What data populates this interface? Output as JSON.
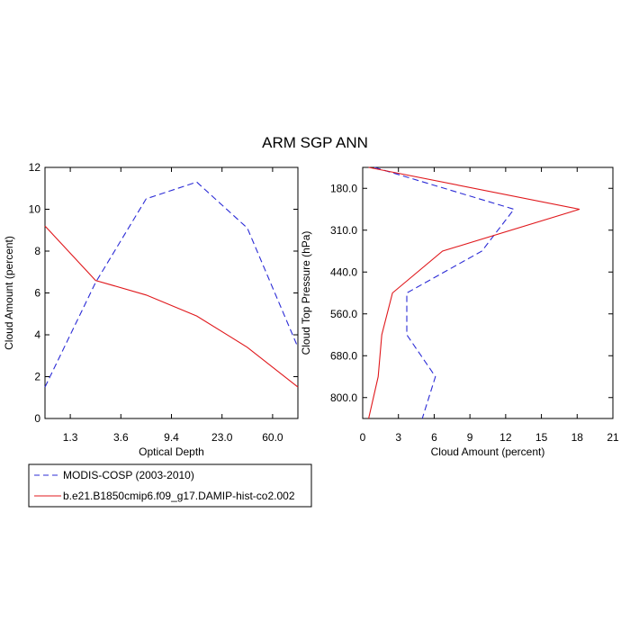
{
  "title": "ARM SGP ANN",
  "legend": {
    "placement": "bottom-left",
    "entries": [
      {
        "label": "MODIS-COSP (2003-2010)",
        "color": "#2b2bd6",
        "dashed": true
      },
      {
        "label": "b.e21.B1850cmip6.f09_g17.DAMIP-hist-co2.002",
        "color": "#e0181c",
        "dashed": false
      }
    ]
  },
  "chart_data": [
    {
      "type": "line",
      "xlabel": "Optical Depth",
      "ylabel": "Cloud Amount (percent)",
      "x_tick_labels": [
        "1.3",
        "3.6",
        "9.4",
        "23.0",
        "60.0"
      ],
      "y_ticks": [
        0,
        2,
        4,
        6,
        8,
        10,
        12
      ],
      "ylim": [
        0,
        12
      ],
      "series": [
        {
          "name": "MODIS-COSP (2003-2010)",
          "color": "#2b2bd6",
          "dashed": true,
          "x": [
            "0.3",
            "2.45",
            "6.5",
            "15.0",
            "41.5",
            "100.0"
          ],
          "values": [
            1.5,
            6.5,
            10.5,
            11.3,
            9.1,
            3.4
          ]
        },
        {
          "name": "b.e21.B1850cmip6.f09_g17.DAMIP-hist-co2.002",
          "color": "#e0181c",
          "dashed": false,
          "x": [
            "0.3",
            "2.45",
            "6.5",
            "15.0",
            "41.5",
            "100.0"
          ],
          "values": [
            9.2,
            6.6,
            5.9,
            4.9,
            3.4,
            1.5
          ]
        }
      ]
    },
    {
      "type": "line",
      "xlabel": "Cloud Amount (percent)",
      "ylabel": "Cloud Top Pressure (hPa)",
      "x_ticks": [
        0,
        3,
        6,
        9,
        12,
        15,
        18,
        21
      ],
      "xlim": [
        0,
        21
      ],
      "y_tick_labels": [
        "180.0",
        "310.0",
        "440.0",
        "560.0",
        "680.0",
        "800.0"
      ],
      "y_levels": [
        "50",
        "180",
        "310",
        "440",
        "560",
        "680",
        "800",
        "1000"
      ],
      "series": [
        {
          "name": "MODIS-COSP (2003-2010)",
          "color": "#2b2bd6",
          "dashed": true,
          "values": [
            1.0,
            12.7,
            10.0,
            3.7,
            3.7,
            6.1,
            5.0
          ]
        },
        {
          "name": "b.e21.B1850cmip6.f09_g17.DAMIP-hist-co2.002",
          "color": "#e0181c",
          "dashed": false,
          "values": [
            0.5,
            18.2,
            6.7,
            2.5,
            1.6,
            1.3,
            0.5
          ]
        }
      ]
    }
  ]
}
